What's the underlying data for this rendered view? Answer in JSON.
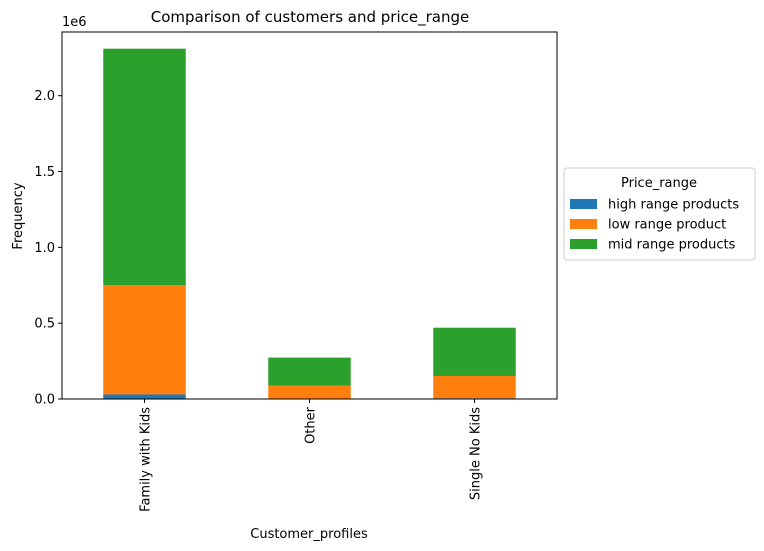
{
  "chart_data": {
    "type": "bar",
    "stacked": true,
    "title": "Comparison of customers and price_range",
    "xlabel": "Customer_profiles",
    "ylabel": "Frequency",
    "y_offset_text": "1e6",
    "categories": [
      "Family with Kids",
      "Other",
      "Single No Kids"
    ],
    "y_ticks": [
      0.0,
      0.5,
      1.0,
      1.5,
      2.0
    ],
    "y_tick_labels": [
      "0.0",
      "0.5",
      "1.0",
      "1.5",
      "2.0"
    ],
    "ylim": [
      0,
      2.42
    ],
    "y_unit_multiplier": 1000000,
    "series": [
      {
        "name": "high range products",
        "color": "#1f77b4",
        "values": [
          0.03,
          0.003,
          0.005
        ]
      },
      {
        "name": "low range product",
        "color": "#ff7f0e",
        "values": [
          0.72,
          0.085,
          0.147
        ]
      },
      {
        "name": "mid range products",
        "color": "#2ca02c",
        "values": [
          1.56,
          0.185,
          0.318
        ]
      }
    ],
    "legend": {
      "title": "Price_range",
      "placement": "outside-right"
    },
    "grid": false
  }
}
